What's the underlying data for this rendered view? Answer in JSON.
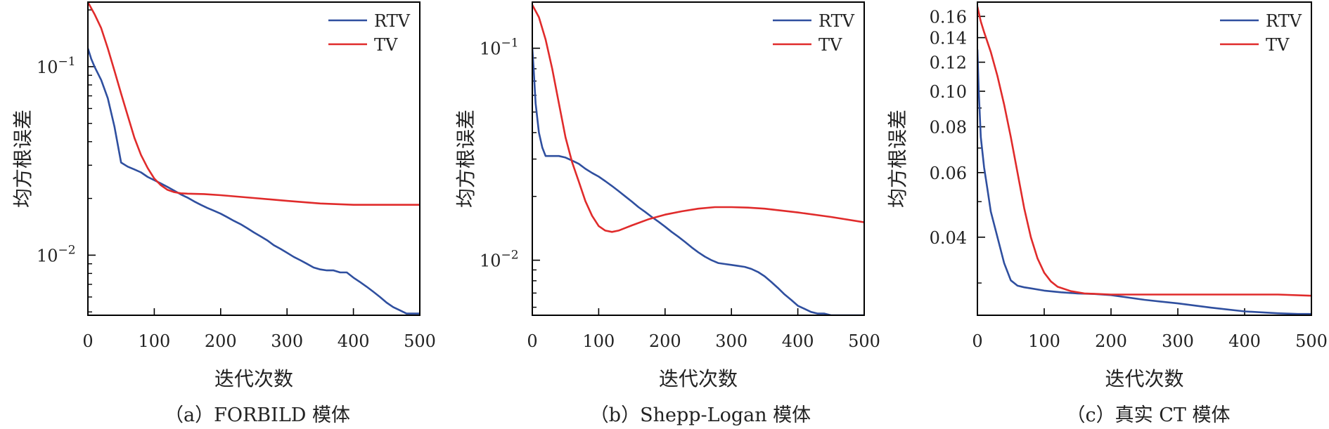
{
  "colors": {
    "RTV": "#2f4f9f",
    "TV": "#e02b2b",
    "axis": "#000000"
  },
  "chart_data": [
    {
      "type": "line",
      "caption": "（a）FORBILD 模体",
      "xlabel": "迭代次数",
      "ylabel": "均方根误差",
      "xlim": [
        0,
        500
      ],
      "ylim": [
        0.0048,
        0.22
      ],
      "yscale": "log",
      "xticks": [
        0,
        100,
        200,
        300,
        400,
        500
      ],
      "yticks": [
        {
          "value": 0.1,
          "base": "10",
          "exp": "−1"
        },
        {
          "value": 0.01,
          "base": "10",
          "exp": "−2"
        }
      ],
      "legend": "top-right",
      "series": [
        {
          "name": "RTV",
          "color": "#2f4f9f",
          "points": [
            [
              0,
              0.125
            ],
            [
              5,
              0.11
            ],
            [
              10,
              0.1
            ],
            [
              20,
              0.085
            ],
            [
              30,
              0.068
            ],
            [
              40,
              0.048
            ],
            [
              50,
              0.031
            ],
            [
              60,
              0.0295
            ],
            [
              70,
              0.0285
            ],
            [
              80,
              0.0275
            ],
            [
              90,
              0.026
            ],
            [
              100,
              0.025
            ],
            [
              110,
              0.024
            ],
            [
              120,
              0.023
            ],
            [
              130,
              0.022
            ],
            [
              140,
              0.021
            ],
            [
              150,
              0.0202
            ],
            [
              160,
              0.0193
            ],
            [
              170,
              0.0185
            ],
            [
              180,
              0.0178
            ],
            [
              190,
              0.0172
            ],
            [
              200,
              0.0166
            ],
            [
              210,
              0.0159
            ],
            [
              220,
              0.0152
            ],
            [
              230,
              0.0146
            ],
            [
              240,
              0.0139
            ],
            [
              250,
              0.0132
            ],
            [
              260,
              0.0126
            ],
            [
              270,
              0.012
            ],
            [
              280,
              0.0113
            ],
            [
              290,
              0.0108
            ],
            [
              300,
              0.0103
            ],
            [
              310,
              0.0098
            ],
            [
              320,
              0.0094
            ],
            [
              330,
              0.009
            ],
            [
              340,
              0.0086
            ],
            [
              350,
              0.0084
            ],
            [
              360,
              0.0083
            ],
            [
              370,
              0.0083
            ],
            [
              380,
              0.0081
            ],
            [
              390,
              0.0081
            ],
            [
              400,
              0.0076
            ],
            [
              410,
              0.0072
            ],
            [
              420,
              0.0068
            ],
            [
              430,
              0.0064
            ],
            [
              440,
              0.006
            ],
            [
              450,
              0.0056
            ],
            [
              460,
              0.0053
            ],
            [
              470,
              0.0051
            ],
            [
              480,
              0.0049
            ],
            [
              490,
              0.0049
            ],
            [
              500,
              0.0049
            ]
          ]
        },
        {
          "name": "TV",
          "color": "#e02b2b",
          "points": [
            [
              0,
              0.22
            ],
            [
              10,
              0.19
            ],
            [
              20,
              0.16
            ],
            [
              30,
              0.125
            ],
            [
              40,
              0.095
            ],
            [
              50,
              0.072
            ],
            [
              60,
              0.055
            ],
            [
              70,
              0.042
            ],
            [
              80,
              0.034
            ],
            [
              90,
              0.029
            ],
            [
              100,
              0.0255
            ],
            [
              110,
              0.0235
            ],
            [
              120,
              0.0222
            ],
            [
              130,
              0.0216
            ],
            [
              140,
              0.0213
            ],
            [
              150,
              0.0212
            ],
            [
              175,
              0.0211
            ],
            [
              200,
              0.0208
            ],
            [
              250,
              0.0201
            ],
            [
              300,
              0.0194
            ],
            [
              350,
              0.0188
            ],
            [
              400,
              0.0185
            ],
            [
              450,
              0.0185
            ],
            [
              500,
              0.0185
            ]
          ]
        }
      ]
    },
    {
      "type": "line",
      "caption": "（b）Shepp-Logan 模体",
      "xlabel": "迭代次数",
      "ylabel": "均方根误差",
      "xlim": [
        0,
        500
      ],
      "ylim": [
        0.0055,
        0.165
      ],
      "yscale": "log",
      "xticks": [
        0,
        100,
        200,
        300,
        400,
        500
      ],
      "yticks": [
        {
          "value": 0.1,
          "base": "10",
          "exp": "−1"
        },
        {
          "value": 0.01,
          "base": "10",
          "exp": "−2"
        }
      ],
      "legend": "top-right",
      "series": [
        {
          "name": "RTV",
          "color": "#2f4f9f",
          "points": [
            [
              0,
              0.1
            ],
            [
              2,
              0.08
            ],
            [
              5,
              0.055
            ],
            [
              10,
              0.04
            ],
            [
              15,
              0.034
            ],
            [
              20,
              0.031
            ],
            [
              30,
              0.031
            ],
            [
              40,
              0.031
            ],
            [
              50,
              0.0305
            ],
            [
              60,
              0.0295
            ],
            [
              70,
              0.0285
            ],
            [
              80,
              0.027
            ],
            [
              90,
              0.0258
            ],
            [
              100,
              0.0248
            ],
            [
              110,
              0.0236
            ],
            [
              120,
              0.0224
            ],
            [
              130,
              0.0212
            ],
            [
              140,
              0.02
            ],
            [
              150,
              0.0189
            ],
            [
              160,
              0.0178
            ],
            [
              170,
              0.0169
            ],
            [
              180,
              0.016
            ],
            [
              190,
              0.0152
            ],
            [
              200,
              0.0144
            ],
            [
              210,
              0.0136
            ],
            [
              220,
              0.0129
            ],
            [
              230,
              0.0122
            ],
            [
              240,
              0.0115
            ],
            [
              250,
              0.0109
            ],
            [
              260,
              0.0104
            ],
            [
              270,
              0.01
            ],
            [
              280,
              0.0097
            ],
            [
              290,
              0.0096
            ],
            [
              300,
              0.0095
            ],
            [
              310,
              0.0094
            ],
            [
              320,
              0.0093
            ],
            [
              330,
              0.0091
            ],
            [
              340,
              0.0088
            ],
            [
              350,
              0.0084
            ],
            [
              360,
              0.0079
            ],
            [
              370,
              0.0074
            ],
            [
              380,
              0.0069
            ],
            [
              390,
              0.0065
            ],
            [
              400,
              0.0061
            ],
            [
              410,
              0.0059
            ],
            [
              420,
              0.0057
            ],
            [
              430,
              0.0056
            ],
            [
              440,
              0.0056
            ],
            [
              450,
              0.0055
            ],
            [
              500,
              0.0055
            ]
          ]
        },
        {
          "name": "TV",
          "color": "#e02b2b",
          "points": [
            [
              0,
              0.16
            ],
            [
              10,
              0.14
            ],
            [
              20,
              0.11
            ],
            [
              30,
              0.08
            ],
            [
              40,
              0.055
            ],
            [
              50,
              0.038
            ],
            [
              60,
              0.029
            ],
            [
              70,
              0.0235
            ],
            [
              80,
              0.019
            ],
            [
              90,
              0.0162
            ],
            [
              100,
              0.0145
            ],
            [
              110,
              0.0138
            ],
            [
              120,
              0.0136
            ],
            [
              130,
              0.0138
            ],
            [
              150,
              0.0146
            ],
            [
              175,
              0.0156
            ],
            [
              200,
              0.0164
            ],
            [
              225,
              0.017
            ],
            [
              250,
              0.0175
            ],
            [
              275,
              0.0178
            ],
            [
              300,
              0.0178
            ],
            [
              325,
              0.0177
            ],
            [
              350,
              0.0175
            ],
            [
              400,
              0.0168
            ],
            [
              450,
              0.016
            ],
            [
              500,
              0.0151
            ]
          ]
        }
      ]
    },
    {
      "type": "line",
      "caption": "（c）真实 CT 模体",
      "xlabel": "迭代次数",
      "ylabel": "均方根误差",
      "xlim": [
        0,
        500
      ],
      "ylim": [
        0.0245,
        0.175
      ],
      "yscale": "log",
      "xticks": [
        0,
        100,
        200,
        300,
        400,
        500
      ],
      "yticks": [
        {
          "value": 0.16,
          "label": "0.16"
        },
        {
          "value": 0.14,
          "label": "0.14"
        },
        {
          "value": 0.12,
          "label": "0.12"
        },
        {
          "value": 0.1,
          "label": "0.10"
        },
        {
          "value": 0.08,
          "label": "0.08"
        },
        {
          "value": 0.06,
          "label": "0.06"
        },
        {
          "value": 0.04,
          "label": "0.04"
        }
      ],
      "legend": "top-right",
      "series": [
        {
          "name": "RTV",
          "color": "#2f4f9f",
          "points": [
            [
              0,
              0.13
            ],
            [
              2,
              0.1
            ],
            [
              5,
              0.075
            ],
            [
              10,
              0.062
            ],
            [
              15,
              0.054
            ],
            [
              20,
              0.047
            ],
            [
              30,
              0.04
            ],
            [
              40,
              0.034
            ],
            [
              50,
              0.0305
            ],
            [
              60,
              0.0295
            ],
            [
              70,
              0.0292
            ],
            [
              80,
              0.029
            ],
            [
              100,
              0.0286
            ],
            [
              125,
              0.0283
            ],
            [
              150,
              0.0281
            ],
            [
              175,
              0.028
            ],
            [
              200,
              0.0278
            ],
            [
              250,
              0.027
            ],
            [
              300,
              0.0264
            ],
            [
              350,
              0.0257
            ],
            [
              400,
              0.0251
            ],
            [
              450,
              0.0248
            ],
            [
              480,
              0.0247
            ],
            [
              500,
              0.0247
            ]
          ]
        },
        {
          "name": "TV",
          "color": "#e02b2b",
          "points": [
            [
              0,
              0.17
            ],
            [
              5,
              0.155
            ],
            [
              10,
              0.145
            ],
            [
              20,
              0.128
            ],
            [
              30,
              0.11
            ],
            [
              40,
              0.092
            ],
            [
              50,
              0.075
            ],
            [
              60,
              0.06
            ],
            [
              70,
              0.048
            ],
            [
              80,
              0.04
            ],
            [
              90,
              0.035
            ],
            [
              100,
              0.032
            ],
            [
              110,
              0.0303
            ],
            [
              120,
              0.0293
            ],
            [
              140,
              0.0285
            ],
            [
              160,
              0.0281
            ],
            [
              180,
              0.028
            ],
            [
              200,
              0.0279
            ],
            [
              300,
              0.0279
            ],
            [
              400,
              0.0279
            ],
            [
              450,
              0.0279
            ],
            [
              500,
              0.0277
            ]
          ]
        }
      ]
    }
  ]
}
